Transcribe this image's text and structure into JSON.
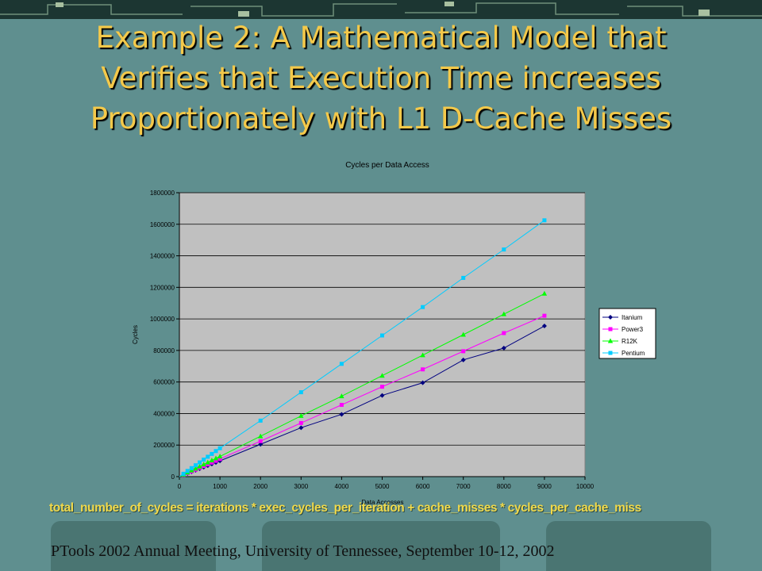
{
  "slide": {
    "title_lines": [
      "Example 2: A Mathematical Model that",
      "Verifies that Execution Time increases",
      "Proportionately with L1 D-Cache Misses"
    ],
    "formula": "total_number_of_cycles = iterations * exec_cycles_per_iteration + cache_misses * cycles_per_cache_miss",
    "footer": "PTools 2002 Annual Meeting, University of Tennessee, September 10-12, 2002"
  },
  "colors": {
    "background": "#5f8f8f",
    "title": "#f4c94a",
    "plot_area": "#c0c0c0",
    "Itanium": "#000080",
    "Power3": "#ff00ff",
    "R12K": "#00ff00",
    "Pentium": "#00ccff"
  },
  "chart_data": {
    "type": "line",
    "title": "Cycles per Data Access",
    "xlabel": "Data Accesses",
    "ylabel": "Cycles",
    "xlim": [
      0,
      10000
    ],
    "ylim": [
      0,
      1800000
    ],
    "xticks": [
      0,
      1000,
      2000,
      3000,
      4000,
      5000,
      6000,
      7000,
      8000,
      9000,
      10000
    ],
    "yticks": [
      0,
      200000,
      400000,
      600000,
      800000,
      1000000,
      1200000,
      1400000,
      1600000,
      1800000
    ],
    "grid": "horizontal",
    "legend_position": "right",
    "series": [
      {
        "name": "Itanium",
        "marker": "diamond",
        "x": [
          100,
          200,
          300,
          400,
          500,
          600,
          700,
          800,
          900,
          1000,
          2000,
          3000,
          4000,
          5000,
          6000,
          7000,
          8000,
          9000
        ],
        "y": [
          10000,
          20000,
          30000,
          40000,
          50000,
          60000,
          70000,
          80000,
          90000,
          100000,
          205000,
          310000,
          395000,
          515000,
          595000,
          740000,
          815000,
          955000
        ]
      },
      {
        "name": "Power3",
        "marker": "square",
        "x": [
          100,
          200,
          300,
          400,
          500,
          600,
          700,
          800,
          900,
          1000,
          2000,
          3000,
          4000,
          5000,
          6000,
          7000,
          8000,
          9000
        ],
        "y": [
          11000,
          22000,
          33000,
          44000,
          56000,
          67000,
          78000,
          89000,
          100000,
          112000,
          225000,
          340000,
          455000,
          570000,
          680000,
          795000,
          910000,
          1020000
        ]
      },
      {
        "name": "R12K",
        "marker": "triangle",
        "x": [
          100,
          200,
          300,
          400,
          500,
          600,
          700,
          800,
          900,
          1000,
          2000,
          3000,
          4000,
          5000,
          6000,
          7000,
          8000,
          9000
        ],
        "y": [
          13000,
          26000,
          39000,
          51000,
          64000,
          77000,
          90000,
          103000,
          116000,
          128000,
          256000,
          385000,
          510000,
          640000,
          770000,
          900000,
          1030000,
          1160000
        ]
      },
      {
        "name": "Pentium",
        "marker": "square",
        "x": [
          100,
          200,
          300,
          400,
          500,
          600,
          700,
          800,
          900,
          1000,
          2000,
          3000,
          4000,
          5000,
          6000,
          7000,
          8000,
          9000
        ],
        "y": [
          18000,
          36000,
          54000,
          72000,
          90000,
          108000,
          126000,
          144000,
          162000,
          180000,
          355000,
          535000,
          715000,
          895000,
          1075000,
          1260000,
          1440000,
          1625000
        ]
      }
    ]
  }
}
